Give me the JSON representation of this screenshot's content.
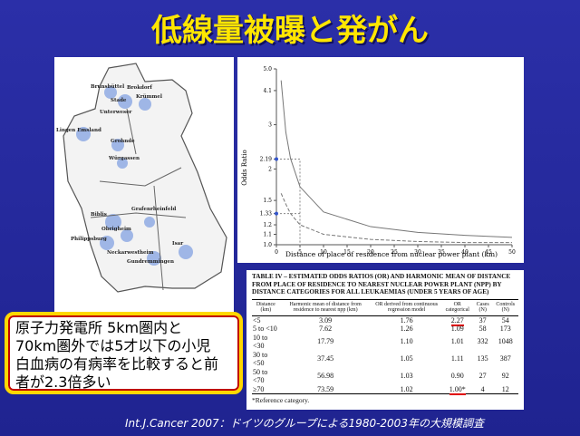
{
  "title": "低線量被曝と発がん",
  "map": {
    "labels": [
      "Brunsbüttel",
      "Brokdorf",
      "Stade",
      "Krümmel",
      "Unterweser",
      "Lingen Emsland",
      "Grohnde",
      "Würgassen",
      "Biblis",
      "Grafenrheinfeld",
      "Obrigheim",
      "Philippsburg",
      "Neckarwestheim",
      "Gundremmingen",
      "Isar"
    ]
  },
  "chart_data": {
    "type": "line",
    "ylabel": "Odds Ratio",
    "xlabel": "Distance of place of residence from nuclear power plant (km)",
    "log_y": true,
    "x": [
      1,
      2,
      3,
      5,
      10,
      20,
      30,
      40,
      50
    ],
    "series": [
      {
        "color": "#777777",
        "dash": false,
        "values": [
          4.5,
          2.8,
          2.2,
          1.7,
          1.35,
          1.18,
          1.12,
          1.09,
          1.07
        ]
      },
      {
        "color": "#777777",
        "dash": true,
        "values": [
          1.6,
          1.45,
          1.33,
          1.2,
          1.1,
          1.05,
          1.03,
          1.02,
          1.02
        ]
      }
    ],
    "xlim": [
      0,
      50
    ],
    "xticks": [
      0,
      5,
      10,
      15,
      20,
      25,
      30,
      35,
      40,
      45,
      50
    ],
    "ylim": [
      1,
      5
    ],
    "yticks": [
      {
        "value": 1,
        "label": "1.0"
      },
      1.1,
      1.2,
      1.33,
      1.5,
      2,
      2.19,
      3,
      4.1,
      {
        "value": 5,
        "label": "5.0"
      }
    ]
  },
  "table": {
    "caption": "TABLE IV – ESTIMATED ODDS RATIOS (OR) AND HARMONIC MEAN OF DISTANCE FROM PLACE OF RESIDENCE TO NEAREST NUCLEAR POWER PLANT (NPP) BY DISTANCE CATEGORIES FOR ALL LEUKAEMIAS (UNDER 5 YEARS OF AGE)",
    "header": [
      "Distance (km)",
      "Harmonic mean of distance from residence to nearest npp (km)",
      "OR derived from continuous regression model",
      "OR categorical",
      "Cases (N)",
      "Controls (N)"
    ],
    "rows": [
      [
        "<5",
        "3.09",
        "1.76",
        "2.27",
        "37",
        "54"
      ],
      [
        "5 to <10",
        "7.62",
        "1.26",
        "1.09",
        "58",
        "173"
      ],
      [
        "10 to <30",
        "17.79",
        "1.10",
        "1.01",
        "332",
        "1048"
      ],
      [
        "30 to <50",
        "37.45",
        "1.05",
        "1.11",
        "135",
        "387"
      ],
      [
        "50 to <70",
        "56.98",
        "1.03",
        "0.90",
        "27",
        "92"
      ],
      [
        "≥70",
        "73.59",
        "1.02",
        "1.00*",
        "4",
        "12"
      ]
    ],
    "footnote": "*Reference category."
  },
  "callout": [
    "原子力発電所 5km圏内と",
    "70km圏外では5才以下の小児",
    "白血病の有病率を比較すると前",
    "者が2.3倍多い"
  ],
  "footer": "Int.J.Cancer 2007：ドイツのグループによる1980-2003年の大規模調査"
}
